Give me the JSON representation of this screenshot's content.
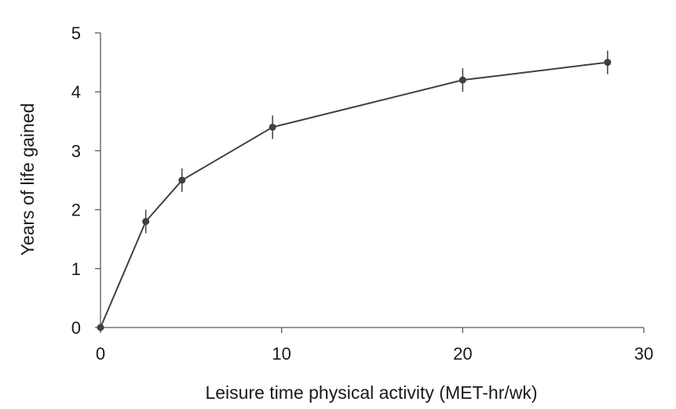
{
  "chart_data": {
    "type": "line",
    "title": "",
    "xlabel": "Leisure time physical activity (MET-hr/wk)",
    "ylabel": "Years of life gained",
    "xlim": [
      0,
      30
    ],
    "ylim": [
      0,
      5
    ],
    "xticks": [
      0,
      10,
      20,
      30
    ],
    "yticks": [
      0,
      1,
      2,
      3,
      4,
      5
    ],
    "grid": false,
    "series": [
      {
        "name": "Years of life gained",
        "x": [
          0,
          2.5,
          4.5,
          9.5,
          20,
          28
        ],
        "y": [
          0,
          1.8,
          2.5,
          3.4,
          4.2,
          4.5
        ],
        "error": [
          0,
          0.2,
          0.2,
          0.2,
          0.2,
          0.2
        ]
      }
    ],
    "colors": {
      "line": "#404040",
      "axis": "#595959",
      "text": "#1a1a1a"
    }
  }
}
